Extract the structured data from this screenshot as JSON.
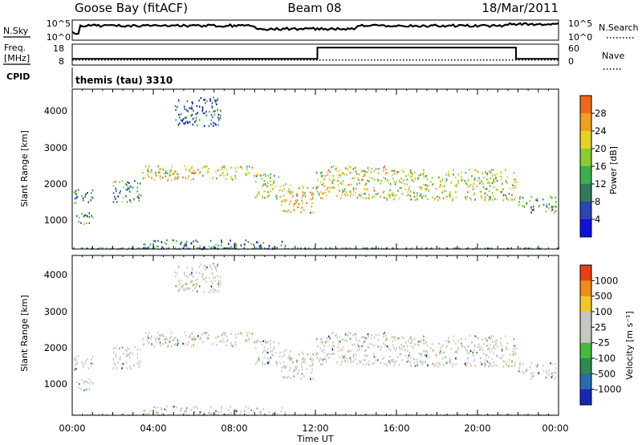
{
  "header": {
    "station": "Goose Bay (fitACF)",
    "beam": "Beam 08",
    "date": "18/Mar/2011"
  },
  "noise_panel": {
    "left_label": "N.Sky",
    "right_label": "N.Search",
    "left_ticks": [
      "10^5",
      "10^0"
    ],
    "right_ticks": [
      "10^5",
      "10^0"
    ]
  },
  "freq_panel": {
    "left_label_1": "Freq.",
    "left_label_2": "[MHz]",
    "right_label": "Nave",
    "left_ticks": [
      "18",
      "8"
    ],
    "right_ticks": [
      "60",
      "0"
    ],
    "nave_steps": [
      {
        "t0": 0.0,
        "t1": 12.1,
        "nave": 18
      },
      {
        "t0": 12.1,
        "t1": 21.9,
        "nave": 50
      },
      {
        "t0": 21.9,
        "t1": 24.0,
        "nave": 18
      }
    ],
    "freq_dotted_level_mhz": 10.4
  },
  "cpid_panel": {
    "label": "CPID",
    "text": "themis (tau) 3310"
  },
  "power_panel": {
    "ylabel": "Slant Range [km]",
    "cb_label": "Power [dB]",
    "cb_ticks": [
      "28",
      "24",
      "20",
      "16",
      "12",
      "8",
      "4"
    ]
  },
  "velocity_panel": {
    "ylabel": "Slant Range [km]",
    "cb_label": "Velocity [m s⁻¹]",
    "cb_ticks": [
      "1000",
      "500",
      "100",
      "25",
      "-25",
      "-100",
      "-500",
      "-1000"
    ]
  },
  "x_axis": {
    "label": "Time UT",
    "ticks": [
      "00:00",
      "04:00",
      "08:00",
      "12:00",
      "16:00",
      "20:00",
      "00:00"
    ]
  },
  "y_ticks": [
    "4000",
    "3000",
    "2000",
    "1000"
  ],
  "colors": {
    "power_scale": [
      "#1010e0",
      "#2a45b8",
      "#2f7a5a",
      "#3cae4a",
      "#8ccb32",
      "#e4d320",
      "#f0a020",
      "#f06818",
      "#e02010"
    ],
    "velocity_scale": [
      "#1428b8",
      "#2a6ab0",
      "#2e8a4e",
      "#44bb3c",
      "#c8c8c0",
      "#c8c8c0",
      "#f0c828",
      "#f08a18",
      "#e84010",
      "#d81010"
    ],
    "gray_scatter": "#c6c6c0"
  },
  "chart_data": {
    "type": "heatmap",
    "title": "Goose Bay (fitACF) Beam 08 18/Mar/2011",
    "xlabel": "Time UT",
    "ylabel": "Slant Range [km]",
    "xlim_hours": [
      0,
      24
    ],
    "ylim_km": [
      180,
      4600
    ],
    "power_range_db": [
      0,
      30
    ],
    "velocity_range_ms": [
      -1000,
      1000
    ],
    "scatter_bands": [
      {
        "t0": 0.0,
        "t1": 1.0,
        "r0": 900,
        "r1": 1200,
        "power": 10,
        "velocity": -20
      },
      {
        "t0": 0.0,
        "t1": 1.0,
        "r0": 1450,
        "r1": 1850,
        "power": 8,
        "velocity": 60
      },
      {
        "t0": 2.0,
        "t1": 3.4,
        "r0": 1500,
        "r1": 2100,
        "power": 10,
        "velocity": 0
      },
      {
        "t0": 3.4,
        "t1": 9.0,
        "r0": 2100,
        "r1": 2500,
        "power": 18,
        "velocity": 0
      },
      {
        "t0": 9.0,
        "t1": 10.2,
        "r0": 1600,
        "r1": 2300,
        "power": 16,
        "velocity": 0
      },
      {
        "t0": 10.2,
        "t1": 11.9,
        "r0": 1200,
        "r1": 2000,
        "power": 20,
        "velocity": -20
      },
      {
        "t0": 12.0,
        "t1": 15.5,
        "r0": 1600,
        "r1": 2500,
        "power": 18,
        "velocity": 0
      },
      {
        "t0": 15.5,
        "t1": 21.9,
        "r0": 1550,
        "r1": 2400,
        "power": 16,
        "velocity": 0
      },
      {
        "t0": 22.0,
        "t1": 23.9,
        "r0": 1200,
        "r1": 1650,
        "power": 10,
        "velocity": 0
      },
      {
        "t0": 5.0,
        "t1": 7.3,
        "r0": 3600,
        "r1": 4400,
        "power": 6,
        "velocity": 0
      },
      {
        "t0": 3.5,
        "t1": 10.5,
        "r0": 200,
        "r1": 450,
        "power": 8,
        "velocity": 0
      }
    ]
  }
}
